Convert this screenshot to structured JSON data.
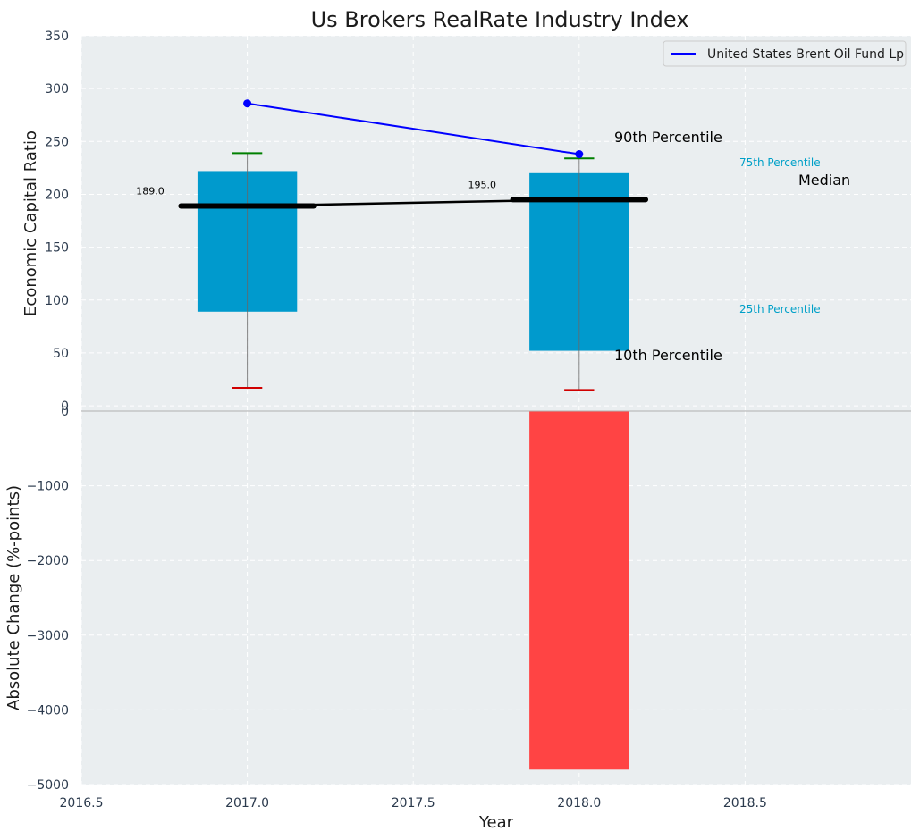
{
  "chart_data": {
    "title": "Us Brokers RealRate Industry Index",
    "xlabel": "Year",
    "xlim": [
      2016.5,
      2019.0
    ],
    "xticks": [
      2016.5,
      2017.0,
      2017.5,
      2018.0,
      2018.5
    ],
    "xtick_labels": [
      "2016.5",
      "2017.0",
      "2017.5",
      "2018.0",
      "2018.5"
    ],
    "grid": true,
    "top_panel": {
      "type": "bar",
      "ylabel": "Economic Capital Ratio",
      "ylim": [
        -5,
        350
      ],
      "yticks": [
        0,
        50,
        100,
        150,
        200,
        250,
        300,
        350
      ],
      "ytick_labels": [
        "0",
        "50",
        "100",
        "150",
        "200",
        "250",
        "300",
        "350"
      ],
      "boxes": [
        {
          "x": 2017.0,
          "p10": 17,
          "p25": 89,
          "median": 189.0,
          "median_label": "189.0",
          "p75": 222,
          "p90": 239
        },
        {
          "x": 2018.0,
          "p10": 15,
          "p25": 52,
          "median": 195.0,
          "median_label": "195.0",
          "p75": 220,
          "p90": 234
        }
      ],
      "series": [
        {
          "name": "United States Brent Oil Fund Lp",
          "x": [
            2017.0,
            2018.0
          ],
          "y": [
            286,
            238
          ],
          "color": "#0000ff"
        }
      ],
      "median_line": {
        "x": [
          2017.0,
          2018.0
        ],
        "y": [
          189.0,
          195.0
        ]
      },
      "annotations": {
        "p90": "90th Percentile",
        "p75": "75th Percentile",
        "median": "Median",
        "p25": "25th Percentile",
        "p10": "10th Percentile"
      },
      "legend": {
        "placement": "top-right",
        "entries": [
          "United States Brent Oil Fund Lp"
        ]
      }
    },
    "bottom_panel": {
      "type": "bar",
      "ylabel": "Absolute Change (%-points)",
      "ylim": [
        -5000,
        0
      ],
      "yticks": [
        0,
        -1000,
        -2000,
        -3000,
        -4000,
        -5000
      ],
      "ytick_labels": [
        "0",
        "−1000",
        "−2000",
        "−3000",
        "−4000",
        "−5000"
      ],
      "bars": [
        {
          "x": 2017.0,
          "value": 0
        },
        {
          "x": 2018.0,
          "value": -4800
        }
      ]
    },
    "colors": {
      "box": "#009acd",
      "bottom_bar": "#ff4040",
      "p90_cap": "#008000",
      "p10_cap": "#d00000",
      "median": "#000000",
      "panel_bg": "#eaeef0",
      "annotation_cyan": "#00a0c8"
    }
  }
}
